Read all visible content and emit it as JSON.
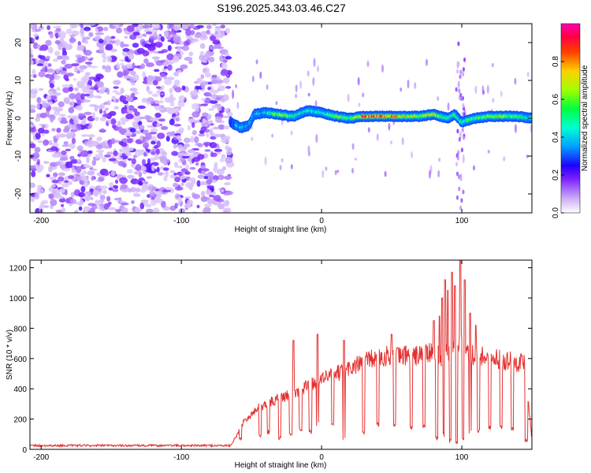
{
  "title": "S196.2025.343.03.46.C27",
  "colors": {
    "snr_line": "#e53030",
    "axis": "#000000",
    "background": "#ffffff",
    "colormap": [
      "#ffffff",
      "#d8c8f0",
      "#a070f0",
      "#5a00ff",
      "#0000ff",
      "#00c8ff",
      "#00ff60",
      "#c8ff00",
      "#ffc800",
      "#ff3030",
      "#ff00c8"
    ]
  },
  "chart_data": [
    {
      "type": "heatmap",
      "title": "S196.2025.343.03.46.C27",
      "xlabel": "Height of straight line (km)",
      "ylabel": "Frequency (Hz)",
      "xlim": [
        -208,
        150
      ],
      "ylim": [
        -25,
        25
      ],
      "xticks": [
        -200,
        -100,
        0,
        100
      ],
      "xtick_labels": [
        "-200",
        "-100",
        "0",
        "100"
      ],
      "yticks": [
        -20,
        -10,
        0,
        10,
        20
      ],
      "ytick_labels": [
        "-20",
        "-10",
        "0",
        "10",
        "20"
      ],
      "colorbar": {
        "label": "Normalized spectral amplitude",
        "range": [
          0.0,
          1.0
        ],
        "ticks": [
          0.0,
          0.2,
          0.4,
          0.6,
          0.8
        ],
        "tick_labels": [
          "0.0",
          "0.2",
          "0.4",
          "0.6",
          "0.8"
        ]
      },
      "noise_region_x": [
        -208,
        -65
      ],
      "signal_track": [
        {
          "x": -65,
          "f": -1.0,
          "amp": 0.35
        },
        {
          "x": -58,
          "f": -2.5,
          "amp": 0.45
        },
        {
          "x": -52,
          "f": -2.0,
          "amp": 0.4
        },
        {
          "x": -48,
          "f": 1.0,
          "amp": 0.4
        },
        {
          "x": -40,
          "f": 1.5,
          "amp": 0.45
        },
        {
          "x": -30,
          "f": 1.0,
          "amp": 0.75
        },
        {
          "x": -20,
          "f": 0.5,
          "amp": 0.55
        },
        {
          "x": -10,
          "f": 2.0,
          "amp": 0.5
        },
        {
          "x": 0,
          "f": 1.5,
          "amp": 0.55
        },
        {
          "x": 10,
          "f": 0.5,
          "amp": 0.7
        },
        {
          "x": 20,
          "f": 0.0,
          "amp": 0.55
        },
        {
          "x": 30,
          "f": 0.5,
          "amp": 0.9
        },
        {
          "x": 40,
          "f": 0.5,
          "amp": 0.95
        },
        {
          "x": 50,
          "f": 0.5,
          "amp": 0.85
        },
        {
          "x": 60,
          "f": 0.5,
          "amp": 0.8
        },
        {
          "x": 70,
          "f": 0.5,
          "amp": 0.7
        },
        {
          "x": 80,
          "f": 1.0,
          "amp": 0.75
        },
        {
          "x": 90,
          "f": 0.0,
          "amp": 0.55
        },
        {
          "x": 95,
          "f": 1.0,
          "amp": 0.6
        },
        {
          "x": 100,
          "f": -1.0,
          "amp": 0.55
        },
        {
          "x": 110,
          "f": 0.0,
          "amp": 0.6
        },
        {
          "x": 120,
          "f": 0.5,
          "amp": 0.7
        },
        {
          "x": 130,
          "f": 0.5,
          "amp": 0.75
        },
        {
          "x": 140,
          "f": 0.5,
          "amp": 0.6
        },
        {
          "x": 150,
          "f": 0.0,
          "amp": 0.5
        }
      ]
    },
    {
      "type": "line",
      "xlabel": "Height of straight line (km)",
      "ylabel": "SNR (10 * v/v)",
      "xlim": [
        -208,
        150
      ],
      "ylim": [
        0,
        1250
      ],
      "xticks": [
        -200,
        -100,
        0,
        100
      ],
      "xtick_labels": [
        "-200",
        "-100",
        "0",
        "100"
      ],
      "yticks": [
        0,
        200,
        400,
        600,
        800,
        1000,
        1200
      ],
      "ytick_labels": [
        "0",
        "200",
        "400",
        "600",
        "800",
        "1000",
        "1200"
      ],
      "series": [
        {
          "name": "SNR",
          "x": [
            -208,
            -65,
            -60,
            -55,
            -50,
            -45,
            -40,
            -35,
            -30,
            -25,
            -20,
            -15,
            -10,
            -5,
            0,
            5,
            10,
            15,
            20,
            25,
            30,
            35,
            40,
            45,
            50,
            55,
            60,
            65,
            70,
            75,
            80,
            85,
            90,
            95,
            100,
            105,
            110,
            115,
            120,
            125,
            130,
            135,
            140,
            145,
            150
          ],
          "values": [
            25,
            25,
            100,
            200,
            230,
            280,
            300,
            320,
            340,
            360,
            380,
            400,
            420,
            450,
            480,
            490,
            500,
            520,
            540,
            560,
            580,
            600,
            610,
            620,
            630,
            620,
            630,
            620,
            630,
            640,
            640,
            620,
            650,
            700,
            750,
            640,
            620,
            620,
            600,
            610,
            590,
            600,
            580,
            590,
            60
          ]
        }
      ],
      "dropouts": [
        {
          "x": -58,
          "y": 50
        },
        {
          "x": -44,
          "y": 80
        },
        {
          "x": -38,
          "y": 100
        },
        {
          "x": -30,
          "y": 60
        },
        {
          "x": -22,
          "y": 90
        },
        {
          "x": -15,
          "y": 120
        },
        {
          "x": -8,
          "y": 100
        },
        {
          "x": -3,
          "y": 150
        },
        {
          "x": 8,
          "y": 150
        },
        {
          "x": 16,
          "y": 50
        },
        {
          "x": 30,
          "y": 100
        },
        {
          "x": 40,
          "y": 150
        },
        {
          "x": 52,
          "y": 140
        },
        {
          "x": 64,
          "y": 130
        },
        {
          "x": 73,
          "y": 140
        },
        {
          "x": 82,
          "y": 60
        },
        {
          "x": 87,
          "y": 80
        },
        {
          "x": 92,
          "y": 40
        },
        {
          "x": 96,
          "y": 30
        },
        {
          "x": 101,
          "y": 60
        },
        {
          "x": 106,
          "y": 100
        },
        {
          "x": 112,
          "y": 100
        },
        {
          "x": 120,
          "y": 130
        },
        {
          "x": 128,
          "y": 130
        },
        {
          "x": 136,
          "y": 120
        },
        {
          "x": 146,
          "y": 50
        }
      ],
      "spikes": [
        {
          "x": -20,
          "y": 720
        },
        {
          "x": -3,
          "y": 760
        },
        {
          "x": 16,
          "y": 720
        },
        {
          "x": 50,
          "y": 760
        },
        {
          "x": 80,
          "y": 850
        },
        {
          "x": 84,
          "y": 880
        },
        {
          "x": 86,
          "y": 1000
        },
        {
          "x": 88,
          "y": 1120
        },
        {
          "x": 90,
          "y": 1050
        },
        {
          "x": 93,
          "y": 1170
        },
        {
          "x": 95,
          "y": 1080
        },
        {
          "x": 99,
          "y": 1250
        },
        {
          "x": 102,
          "y": 1120
        },
        {
          "x": 106,
          "y": 900
        },
        {
          "x": 110,
          "y": 820
        }
      ]
    }
  ]
}
